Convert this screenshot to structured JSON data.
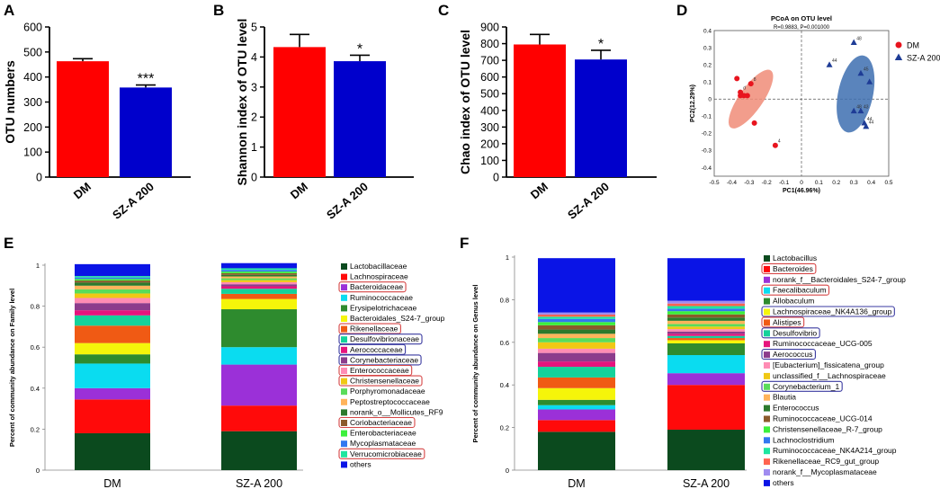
{
  "chart_data": [
    {
      "panel": "A",
      "type": "bar",
      "categories": [
        "DM",
        "SZ-A 200"
      ],
      "values": [
        463,
        358
      ],
      "errors": [
        10,
        10
      ],
      "colors": [
        "#ff0000",
        "#0000cc"
      ],
      "ylabel": "OTU numbers",
      "ylim": [
        0,
        600
      ],
      "yticks": [
        "0",
        "100",
        "200",
        "300",
        "400",
        "500",
        "600"
      ],
      "significance": [
        "",
        "***"
      ]
    },
    {
      "panel": "B",
      "type": "bar",
      "categories": [
        "DM",
        "SZ-A 200"
      ],
      "values": [
        4.33,
        3.86
      ],
      "errors": [
        0.42,
        0.2
      ],
      "colors": [
        "#ff0000",
        "#0000cc"
      ],
      "ylabel": "Shannon index of OTU level",
      "ylim": [
        0,
        5
      ],
      "yticks": [
        "0",
        "1",
        "2",
        "3",
        "4",
        "5"
      ],
      "significance": [
        "",
        "*"
      ]
    },
    {
      "panel": "C",
      "type": "bar",
      "categories": [
        "DM",
        "SZ-A 200"
      ],
      "values": [
        795,
        705
      ],
      "errors": [
        60,
        55
      ],
      "colors": [
        "#ff0000",
        "#0000cc"
      ],
      "ylabel": "Chao index of OTU level",
      "ylim": [
        0,
        900
      ],
      "yticks": [
        "0",
        "100",
        "200",
        "300",
        "400",
        "500",
        "600",
        "700",
        "800",
        "900"
      ],
      "significance": [
        "",
        "*"
      ]
    },
    {
      "panel": "D",
      "type": "scatter",
      "title": "PCoA on OTU level",
      "subtitle": "R=0.9883, P=0.001000",
      "xlabel": "PC1(46.96%)",
      "ylabel": "PC2(12.29%)",
      "xlim": [
        -0.5,
        0.5
      ],
      "ylim": [
        -0.45,
        0.4
      ],
      "xticks": [
        "-0.5",
        "-0.4",
        "-0.3",
        "-0.2",
        "-0.1",
        "0",
        "0.1",
        "0.2",
        "0.3",
        "0.4",
        "0.5"
      ],
      "yticks": [
        "-0.4",
        "-0.3",
        "-0.2",
        "-0.1",
        "0",
        "0.1",
        "0.2",
        "0.3",
        "0.4"
      ],
      "series": [
        {
          "name": "DM",
          "color": "#e8141e",
          "marker": "circle",
          "ellipse": {
            "cx": -0.29,
            "cy": 0.0,
            "rx": 0.2,
            "ry": 0.068,
            "angle": -55,
            "fill": "#f08c78"
          },
          "points": [
            {
              "x": -0.37,
              "y": 0.12,
              "label": ""
            },
            {
              "x": -0.29,
              "y": 0.09,
              "label": "8"
            },
            {
              "x": -0.35,
              "y": 0.04,
              "label": "d"
            },
            {
              "x": -0.33,
              "y": 0.02,
              "label": ""
            },
            {
              "x": -0.35,
              "y": 0.02,
              "label": ""
            },
            {
              "x": -0.31,
              "y": 0.02,
              "label": ""
            },
            {
              "x": -0.27,
              "y": -0.14,
              "label": ""
            },
            {
              "x": -0.15,
              "y": -0.27,
              "label": "4"
            }
          ]
        },
        {
          "name": "SZ-A 200",
          "color": "#1e3c96",
          "marker": "triangle",
          "ellipse": {
            "cx": 0.31,
            "cy": 0.03,
            "rx": 0.225,
            "ry": 0.1,
            "angle": -78,
            "fill": "#3d6fb0"
          },
          "points": [
            {
              "x": 0.3,
              "y": 0.33,
              "label": "48"
            },
            {
              "x": 0.16,
              "y": 0.2,
              "label": "44"
            },
            {
              "x": 0.34,
              "y": 0.15,
              "label": "45"
            },
            {
              "x": 0.39,
              "y": 0.1,
              "label": ""
            },
            {
              "x": 0.3,
              "y": -0.07,
              "label": "48"
            },
            {
              "x": 0.34,
              "y": -0.07,
              "label": "43"
            },
            {
              "x": 0.36,
              "y": -0.14,
              "label": "44"
            },
            {
              "x": 0.37,
              "y": -0.16,
              "label": "44"
            }
          ]
        }
      ]
    },
    {
      "panel": "E",
      "type": "bar",
      "stacked": true,
      "categories": [
        "DM",
        "SZ-A 200"
      ],
      "ylabel": "Percent of community abundance on Family level",
      "ylim": [
        0,
        1
      ],
      "yticks": [
        "0",
        "0.2",
        "0.4",
        "0.6",
        "0.8",
        "1"
      ],
      "series": [
        {
          "name": "Lactobacillaceae",
          "color": "#0b4a1e",
          "values": [
            0.18,
            0.19
          ],
          "box": ""
        },
        {
          "name": "Lachnospiraceae",
          "color": "#ff0a0a",
          "values": [
            0.165,
            0.125
          ],
          "box": ""
        },
        {
          "name": "Bacteroidaceae",
          "color": "#9b30d8",
          "values": [
            0.055,
            0.2
          ],
          "box": "#d64545"
        },
        {
          "name": "Ruminococcaceae",
          "color": "#0adcf0",
          "values": [
            0.12,
            0.085
          ],
          "box": ""
        },
        {
          "name": "Erysipelotrichaceae",
          "color": "#2e8b2e",
          "values": [
            0.045,
            0.185
          ],
          "box": ""
        },
        {
          "name": "Bacteroidales_S24-7_group",
          "color": "#f5f50a",
          "values": [
            0.055,
            0.05
          ],
          "box": ""
        },
        {
          "name": "Rikenellaceae",
          "color": "#f05a14",
          "values": [
            0.085,
            0.025
          ],
          "box": "#d64545"
        },
        {
          "name": "Desulfovibrionaceae",
          "color": "#14d29b",
          "values": [
            0.05,
            0.025
          ],
          "box": "#3a3aa0"
        },
        {
          "name": "Aerococcaceae",
          "color": "#e6147d",
          "values": [
            0.025,
            0.012
          ],
          "box": "#3a3aa0"
        },
        {
          "name": "Corynebacteriaceae",
          "color": "#8c3c8c",
          "values": [
            0.035,
            0.01
          ],
          "box": "#3a3aa0"
        },
        {
          "name": "Enterococcaceae",
          "color": "#ff8cb4",
          "values": [
            0.025,
            0.01
          ],
          "box": "#d64545"
        },
        {
          "name": "Christensenellaceae",
          "color": "#f0c814",
          "values": [
            0.022,
            0.01
          ],
          "box": "#d64545"
        },
        {
          "name": "Porphyromonadaceae",
          "color": "#5adc5a",
          "values": [
            0.02,
            0.009
          ],
          "box": ""
        },
        {
          "name": "Peptostreptococcaceae",
          "color": "#ffb45a",
          "values": [
            0.018,
            0.009
          ],
          "box": ""
        },
        {
          "name": "norank_o__Mollicutes_RF9",
          "color": "#2c7a2c",
          "values": [
            0.015,
            0.008
          ],
          "box": ""
        },
        {
          "name": "Coriobacteriaceae",
          "color": "#8b5a2b",
          "values": [
            0.01,
            0.008
          ],
          "box": "#d64545"
        },
        {
          "name": "Enterobacteriaceae",
          "color": "#3cf03c",
          "values": [
            0.008,
            0.008
          ],
          "box": ""
        },
        {
          "name": "Mycoplasmataceae",
          "color": "#3278f0",
          "values": [
            0.007,
            0.008
          ],
          "box": ""
        },
        {
          "name": "Verrucomicrobiaceae",
          "color": "#1ee6a0",
          "values": [
            0.007,
            0.008
          ],
          "box": "#d64545"
        },
        {
          "name": "others",
          "color": "#0a14e6",
          "values": [
            0.058,
            0.025
          ],
          "box": ""
        }
      ]
    },
    {
      "panel": "F",
      "type": "bar",
      "stacked": true,
      "categories": [
        "DM",
        "SZ-A 200"
      ],
      "ylabel": "Percent of community abundance on Genus level",
      "ylim": [
        0,
        1
      ],
      "yticks": [
        "0",
        "0.2",
        "0.4",
        "0.6",
        "0.8",
        "1"
      ],
      "series": [
        {
          "name": "Lactobacillus",
          "color": "#0b4a1e",
          "values": [
            0.18,
            0.19
          ],
          "box": ""
        },
        {
          "name": "Bacteroides",
          "color": "#ff0a0a",
          "values": [
            0.055,
            0.21
          ],
          "box": "#d64545"
        },
        {
          "name": "norank_f__Bacteroidales_S24-7_group",
          "color": "#9b30d8",
          "values": [
            0.05,
            0.055
          ],
          "box": ""
        },
        {
          "name": "Faecalibaculum",
          "color": "#0adcf0",
          "values": [
            0.02,
            0.085
          ],
          "box": "#d64545"
        },
        {
          "name": "Allobaculum",
          "color": "#2e8b2e",
          "values": [
            0.025,
            0.055
          ],
          "box": ""
        },
        {
          "name": "Lachnospiraceae_NK4A136_group",
          "color": "#f5f50a",
          "values": [
            0.055,
            0.015
          ],
          "box": "#3a3aa0"
        },
        {
          "name": "Alistipes",
          "color": "#f05a14",
          "values": [
            0.05,
            0.01
          ],
          "box": "#d64545"
        },
        {
          "name": "Desulfovibrio",
          "color": "#14d29b",
          "values": [
            0.05,
            0.01
          ],
          "box": "#3a3aa0"
        },
        {
          "name": "Ruminococcaceae_UCG-005",
          "color": "#e6147d",
          "values": [
            0.025,
            0.01
          ],
          "box": ""
        },
        {
          "name": "Aerococcus",
          "color": "#8c3c8c",
          "values": [
            0.04,
            0.01
          ],
          "box": "#3a3aa0"
        },
        {
          "name": "[Eubacterium]_fissicatena_group",
          "color": "#ff8cb4",
          "values": [
            0.02,
            0.012
          ],
          "box": ""
        },
        {
          "name": "unclassified_f__Lachnospiraceae",
          "color": "#f0c814",
          "values": [
            0.03,
            0.012
          ],
          "box": ""
        },
        {
          "name": "Corynebacterium_1",
          "color": "#5adc5a",
          "values": [
            0.02,
            0.012
          ],
          "box": "#3a3aa0"
        },
        {
          "name": "Blautia",
          "color": "#ffb45a",
          "values": [
            0.02,
            0.015
          ],
          "box": ""
        },
        {
          "name": "Enterococcus",
          "color": "#2c7a2c",
          "values": [
            0.02,
            0.015
          ],
          "box": ""
        },
        {
          "name": "Ruminococcaceae_UCG-014",
          "color": "#8b5a2b",
          "values": [
            0.02,
            0.015
          ],
          "box": ""
        },
        {
          "name": "Christensenellaceae_R-7_group",
          "color": "#3cf03c",
          "values": [
            0.015,
            0.015
          ],
          "box": ""
        },
        {
          "name": "Lachnoclostridium",
          "color": "#3278f0",
          "values": [
            0.015,
            0.012
          ],
          "box": ""
        },
        {
          "name": "Ruminococcaceae_NK4A214_group",
          "color": "#1ee6a0",
          "values": [
            0.01,
            0.012
          ],
          "box": ""
        },
        {
          "name": "Rikenellaceae_RC9_gut_group",
          "color": "#ff6450",
          "values": [
            0.01,
            0.012
          ],
          "box": ""
        },
        {
          "name": "norank_f__Mycoplasmataceae",
          "color": "#a08cf0",
          "values": [
            0.01,
            0.013
          ],
          "box": ""
        },
        {
          "name": "others",
          "color": "#0a14e6",
          "values": [
            0.255,
            0.2
          ],
          "box": ""
        }
      ]
    }
  ]
}
